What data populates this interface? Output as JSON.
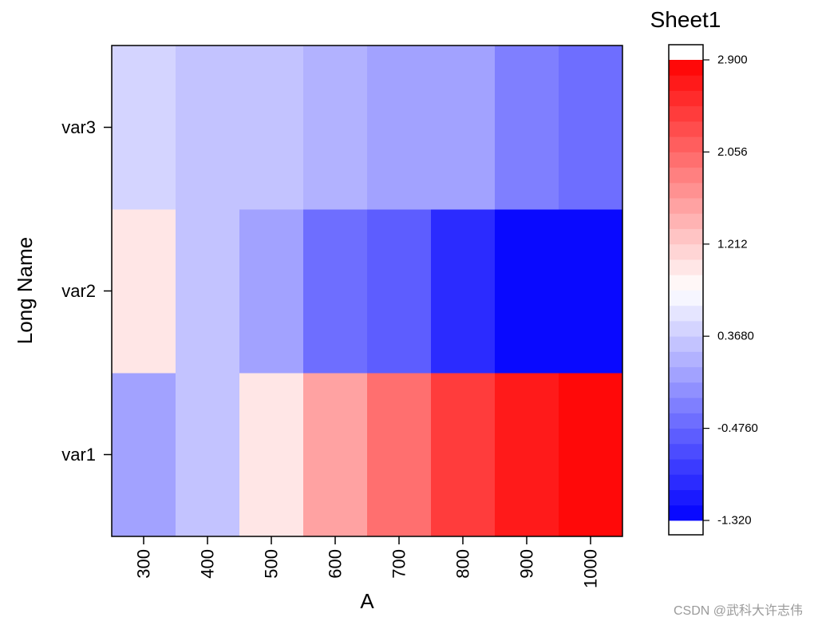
{
  "chart_data": {
    "type": "heatmap",
    "title": "Sheet1",
    "xlabel": "A",
    "ylabel": "Long Name",
    "x_categories": [
      "300",
      "400",
      "500",
      "600",
      "700",
      "800",
      "900",
      "1000"
    ],
    "y_categories": [
      "var1",
      "var2",
      "var3"
    ],
    "values": [
      [
        0.05,
        0.3,
        1.0,
        1.6,
        2.0,
        2.4,
        2.7,
        2.9
      ],
      [
        0.95,
        0.3,
        0.05,
        -0.4,
        -0.6,
        -1.0,
        -1.2,
        -1.32
      ],
      [
        0.45,
        0.3,
        0.3,
        0.15,
        0.05,
        0.05,
        -0.2,
        -0.4
      ]
    ],
    "colorbar": {
      "min": -1.32,
      "max": 2.9,
      "levels": 30,
      "tick_values": [
        -1.32,
        -0.476,
        0.368,
        1.212,
        2.056,
        2.9
      ],
      "tick_labels": [
        "-1.320",
        "-0.4760",
        "0.3680",
        "1.212",
        "2.056",
        "2.900"
      ],
      "colors": {
        "low": "#0000ff",
        "mid": "#ffffff",
        "high": "#ff0000"
      }
    }
  },
  "watermark": "CSDN @武科大许志伟"
}
